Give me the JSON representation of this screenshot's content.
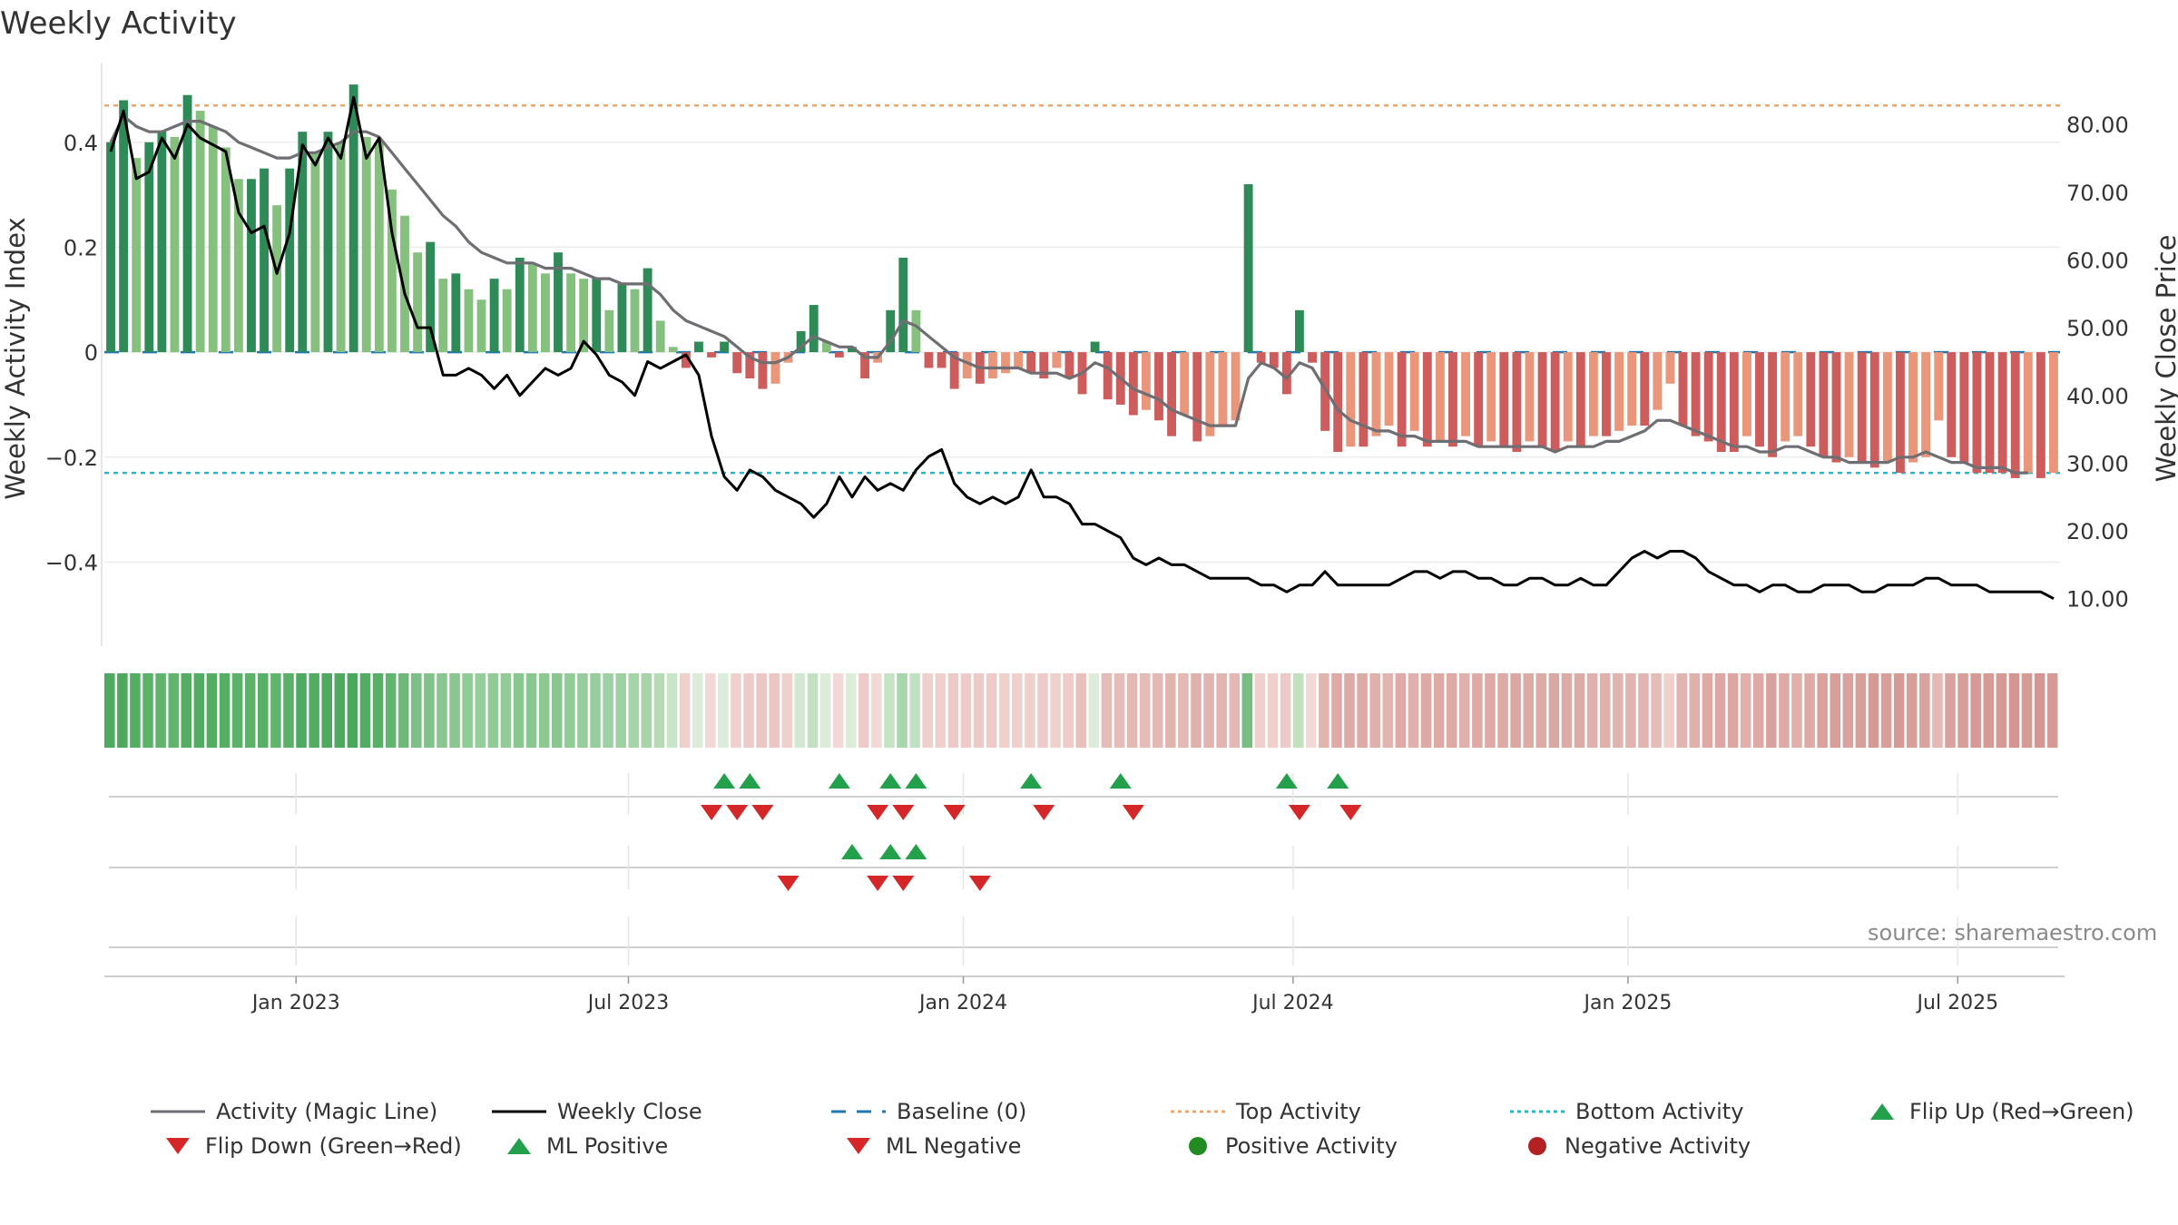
{
  "page_title": "Weekly Activity",
  "source_note": "source: sharemaestro.com",
  "colors": {
    "strong_green": "#2e8b57",
    "light_green": "#86c07f",
    "strong_red": "#cd5c5c",
    "light_red": "#e9967a",
    "magic_line": "#6e6e73",
    "close_line": "#000000",
    "baseline": "#1f77b4",
    "top_line": "#f4a460",
    "bottom_line": "#17becf",
    "flip_up": "#22a04b",
    "flip_down": "#d62728",
    "positive": "#228b22",
    "negative": "#b22222"
  },
  "chart_data": {
    "type": "bar",
    "title": "Weekly Activity",
    "ylabel": "Weekly Activity Index",
    "y2label": "Weekly Close Price",
    "ylim": [
      -0.56,
      0.55
    ],
    "y2lim": [
      3.0,
      89.0
    ],
    "yticks": [
      {
        "v": 0.4,
        "label": "0.4"
      },
      {
        "v": 0.2,
        "label": "0.2"
      },
      {
        "v": 0.0,
        "label": "0"
      },
      {
        "v": -0.2,
        "label": "−0.2"
      },
      {
        "v": -0.4,
        "label": "−0.4"
      }
    ],
    "y2ticks": [
      {
        "v": 80,
        "label": "80.00"
      },
      {
        "v": 70,
        "label": "70.00"
      },
      {
        "v": 60,
        "label": "60.00"
      },
      {
        "v": 50,
        "label": "50.00"
      },
      {
        "v": 40,
        "label": "40.00"
      },
      {
        "v": 30,
        "label": "30.00"
      },
      {
        "v": 20,
        "label": "20.00"
      },
      {
        "v": 10,
        "label": "10.00"
      }
    ],
    "xticks": [
      {
        "week": 14.5,
        "label": "Jan 2023"
      },
      {
        "week": 40.5,
        "label": "Jul 2023"
      },
      {
        "week": 66.7,
        "label": "Jan 2024"
      },
      {
        "week": 92.5,
        "label": "Jul 2024"
      },
      {
        "week": 118.7,
        "label": "Jan 2025"
      },
      {
        "week": 144.5,
        "label": "Jul 2025"
      }
    ],
    "top_activity": 0.47,
    "bottom_activity": -0.23,
    "baseline": 0,
    "activity": [
      0.4,
      0.48,
      0.37,
      0.4,
      0.42,
      0.41,
      0.49,
      0.46,
      0.43,
      0.39,
      0.33,
      0.33,
      0.35,
      0.28,
      0.35,
      0.42,
      0.38,
      0.42,
      0.4,
      0.51,
      0.41,
      0.4,
      0.31,
      0.26,
      0.19,
      0.21,
      0.14,
      0.15,
      0.12,
      0.1,
      0.14,
      0.12,
      0.18,
      0.17,
      0.15,
      0.19,
      0.15,
      0.14,
      0.14,
      0.08,
      0.13,
      0.12,
      0.16,
      0.06,
      0.01,
      -0.03,
      0.02,
      -0.01,
      0.02,
      -0.04,
      -0.05,
      -0.07,
      -0.06,
      -0.02,
      0.04,
      0.09,
      0.02,
      -0.01,
      0.01,
      -0.05,
      -0.02,
      0.08,
      0.18,
      0.08,
      -0.03,
      -0.03,
      -0.07,
      -0.05,
      -0.06,
      -0.05,
      -0.04,
      -0.03,
      -0.04,
      -0.05,
      -0.03,
      -0.05,
      -0.08,
      0.02,
      -0.09,
      -0.1,
      -0.12,
      -0.11,
      -0.13,
      -0.16,
      -0.12,
      -0.17,
      -0.16,
      -0.14,
      -0.13,
      0.32,
      -0.02,
      -0.03,
      -0.08,
      0.08,
      -0.02,
      -0.15,
      -0.19,
      -0.18,
      -0.18,
      -0.16,
      -0.14,
      -0.18,
      -0.15,
      -0.18,
      -0.17,
      -0.18,
      -0.16,
      -0.18,
      -0.17,
      -0.18,
      -0.19,
      -0.17,
      -0.18,
      -0.19,
      -0.17,
      -0.18,
      -0.16,
      -0.16,
      -0.15,
      -0.14,
      -0.14,
      -0.11,
      -0.06,
      -0.14,
      -0.16,
      -0.17,
      -0.19,
      -0.19,
      -0.16,
      -0.18,
      -0.2,
      -0.17,
      -0.16,
      -0.18,
      -0.2,
      -0.21,
      -0.2,
      -0.21,
      -0.22,
      -0.21,
      -0.23,
      -0.21,
      -0.2,
      -0.13,
      -0.2,
      -0.21,
      -0.23,
      -0.23,
      -0.23,
      -0.24,
      -0.23,
      -0.24,
      -0.23
    ],
    "magic_line": [
      0.4,
      0.45,
      0.43,
      0.42,
      0.42,
      0.43,
      0.44,
      0.44,
      0.43,
      0.42,
      0.4,
      0.39,
      0.38,
      0.37,
      0.37,
      0.38,
      0.38,
      0.39,
      0.4,
      0.42,
      0.42,
      0.41,
      0.38,
      0.35,
      0.32,
      0.29,
      0.26,
      0.24,
      0.21,
      0.19,
      0.18,
      0.17,
      0.17,
      0.17,
      0.16,
      0.16,
      0.16,
      0.15,
      0.14,
      0.14,
      0.13,
      0.13,
      0.13,
      0.11,
      0.08,
      0.06,
      0.05,
      0.04,
      0.03,
      0.01,
      -0.01,
      -0.02,
      -0.02,
      -0.01,
      0.01,
      0.03,
      0.02,
      0.01,
      0.01,
      -0.01,
      -0.01,
      0.02,
      0.06,
      0.05,
      0.03,
      0.01,
      -0.01,
      -0.02,
      -0.03,
      -0.03,
      -0.03,
      -0.03,
      -0.04,
      -0.04,
      -0.04,
      -0.05,
      -0.04,
      -0.02,
      -0.03,
      -0.05,
      -0.07,
      -0.08,
      -0.09,
      -0.11,
      -0.12,
      -0.13,
      -0.14,
      -0.14,
      -0.14,
      -0.05,
      -0.02,
      -0.03,
      -0.05,
      -0.02,
      -0.03,
      -0.07,
      -0.11,
      -0.13,
      -0.14,
      -0.15,
      -0.15,
      -0.16,
      -0.16,
      -0.17,
      -0.17,
      -0.17,
      -0.17,
      -0.18,
      -0.18,
      -0.18,
      -0.18,
      -0.18,
      -0.18,
      -0.19,
      -0.18,
      -0.18,
      -0.18,
      -0.17,
      -0.17,
      -0.16,
      -0.15,
      -0.13,
      -0.13,
      -0.14,
      -0.15,
      -0.16,
      -0.17,
      -0.18,
      -0.18,
      -0.19,
      -0.19,
      -0.18,
      -0.18,
      -0.19,
      -0.2,
      -0.2,
      -0.21,
      -0.21,
      -0.21,
      -0.21,
      -0.2,
      -0.2,
      -0.19,
      -0.2,
      -0.21,
      -0.21,
      -0.22,
      -0.22,
      -0.22,
      -0.23,
      -0.23
    ],
    "weekly_close": [
      76,
      82,
      72,
      73,
      78,
      75,
      80,
      78,
      77,
      76,
      67,
      64,
      65,
      58,
      64,
      77,
      74,
      78,
      75,
      84,
      75,
      78,
      64,
      55,
      50,
      50,
      43,
      43,
      44,
      43,
      41,
      43,
      40,
      42,
      44,
      43,
      44,
      48,
      46,
      43,
      42,
      40,
      45,
      44,
      45,
      46,
      43,
      34,
      28,
      26,
      29,
      28,
      26,
      25,
      24,
      22,
      24,
      28,
      25,
      28,
      26,
      27,
      26,
      29,
      31,
      32,
      27,
      25,
      24,
      25,
      24,
      25,
      29,
      25,
      25,
      24,
      21,
      21,
      20,
      19,
      16,
      15,
      16,
      15,
      15,
      14,
      13,
      13,
      13,
      13,
      12,
      12,
      11,
      12,
      12,
      14,
      12,
      12,
      12,
      12,
      12,
      13,
      14,
      14,
      13,
      14,
      14,
      13,
      13,
      12,
      12,
      13,
      13,
      12,
      12,
      13,
      12,
      12,
      14,
      16,
      17,
      16,
      17,
      17,
      16,
      14,
      13,
      12,
      12,
      11,
      12,
      12,
      11,
      11,
      12,
      12,
      12,
      11,
      11,
      12,
      12,
      12,
      13,
      13,
      12,
      12,
      12,
      11,
      11,
      11,
      11,
      11,
      10
    ],
    "strip_colors": [
      "#4daa5f",
      "#4daa5f",
      "#54ad63",
      "#5db26a",
      "#60b46c",
      "#60b46c",
      "#54ad63",
      "#52ac62",
      "#54ad63",
      "#56ae65",
      "#5db26a",
      "#5db26a",
      "#58af66",
      "#62b56e",
      "#5ab068",
      "#4daa5f",
      "#52ac62",
      "#4daa5f",
      "#4daa5f",
      "#48a85b",
      "#52ac62",
      "#58af66",
      "#62b56e",
      "#6db978",
      "#7cc086",
      "#80c28a",
      "#8ac790",
      "#8ac790",
      "#90ca96",
      "#96cd9c",
      "#90ca96",
      "#92cb98",
      "#8ac790",
      "#8ac790",
      "#8dc893",
      "#8ac790",
      "#92cb98",
      "#96cd9c",
      "#96cd9c",
      "#9ed1a2",
      "#9ed1a2",
      "#a4d4a8",
      "#a4d4a8",
      "#b4dbb5",
      "#c9e5c8",
      "#f0d0cd",
      "#dcecd9",
      "#f2d8d6",
      "#dcecd9",
      "#f0d0cd",
      "#eecbc8",
      "#ecc6c3",
      "#ecc6c3",
      "#f0d0cd",
      "#d2e8d0",
      "#c2e1c1",
      "#dcecd9",
      "#f2d8d6",
      "#dcecd9",
      "#eecbc8",
      "#f2d8d6",
      "#c6e3c5",
      "#a8d6ac",
      "#c2e1c1",
      "#f0d0cd",
      "#f0d0cd",
      "#eccac7",
      "#eecbc8",
      "#eccac7",
      "#eecbc8",
      "#f0d0cd",
      "#f0d0cd",
      "#f0d0cd",
      "#eecbc8",
      "#f0d0cd",
      "#eecbc8",
      "#e8c0bc",
      "#dcecd9",
      "#e6bcb8",
      "#e6bcb8",
      "#e4b8b4",
      "#e6bcb8",
      "#e4b8b4",
      "#e2b4b0",
      "#e4b8b4",
      "#e0b0ac",
      "#e2b4b0",
      "#e2b4b0",
      "#e4b8b4",
      "#78be82",
      "#f0d0cd",
      "#f0d0cd",
      "#eccac7",
      "#c2e1c1",
      "#f2d8d6",
      "#e2b4b0",
      "#deaaa6",
      "#deaaa6",
      "#deaaa6",
      "#e0b0ac",
      "#e2b4b0",
      "#deaaa6",
      "#e0b0ac",
      "#deaaa6",
      "#deaaa6",
      "#deaaa6",
      "#e0b0ac",
      "#deaaa6",
      "#deaaa6",
      "#deaaa6",
      "#dca6a2",
      "#deaaa6",
      "#deaaa6",
      "#dca6a2",
      "#deaaa6",
      "#deaaa6",
      "#e0b0ac",
      "#e0b0ac",
      "#e2b4b0",
      "#e2b4b0",
      "#e2b4b0",
      "#e6bcb8",
      "#f0d0cd",
      "#e2b4b0",
      "#e0b0ac",
      "#deaaa6",
      "#dca6a2",
      "#dca6a2",
      "#e0b0ac",
      "#deaaa6",
      "#daa29e",
      "#deaaa6",
      "#e0b0ac",
      "#deaaa6",
      "#daa29e",
      "#d89e9a",
      "#daa29e",
      "#d89e9a",
      "#d69a96",
      "#d89e9a",
      "#d69a96",
      "#d89e9a",
      "#daa29e",
      "#e4b8b4",
      "#daa29e",
      "#d89e9a",
      "#d69a96",
      "#d69a96",
      "#d69a96",
      "#d49692",
      "#d69a96",
      "#d49692",
      "#d69a96"
    ],
    "flip_up_weeks": [
      48,
      50,
      57,
      61,
      63,
      72,
      79,
      92,
      96
    ],
    "flip_down_weeks": [
      47,
      49,
      51,
      60,
      62,
      66,
      73,
      80,
      93,
      97
    ],
    "ml_positive_weeks": [
      58,
      61,
      63
    ],
    "ml_negative_weeks": [
      53,
      60,
      62,
      68
    ],
    "legend": [
      "Activity (Magic Line)",
      "Weekly Close",
      "Baseline (0)",
      "Top Activity",
      "Bottom Activity",
      "Flip Up (Red→Green)",
      "Flip Down (Green→Red)",
      "ML Positive",
      "ML Negative",
      "Positive Activity",
      "Negative Activity"
    ]
  }
}
